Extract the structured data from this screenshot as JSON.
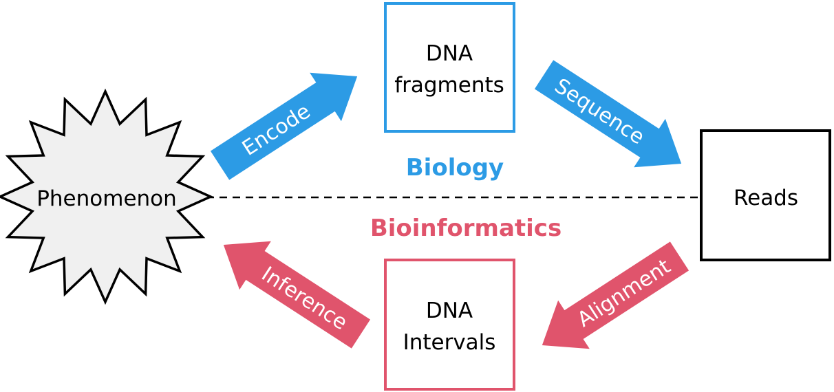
{
  "colors": {
    "biology": "#2c9be5",
    "bioinformatics": "#e0546c",
    "outline": "#000000",
    "phenomenon_fill": "#f0f0f0"
  },
  "nodes": {
    "phenomenon": "Phenomenon",
    "dna_fragments": {
      "line1": "DNA",
      "line2": "fragments"
    },
    "reads": "Reads",
    "dna_intervals": {
      "line1": "DNA",
      "line2": "Intervals"
    }
  },
  "regions": {
    "biology": "Biology",
    "bioinformatics": "Bioinformatics"
  },
  "arrows": {
    "encode": "Encode",
    "sequence": "Sequence",
    "alignment": "Alignment",
    "inference": "Inference"
  }
}
